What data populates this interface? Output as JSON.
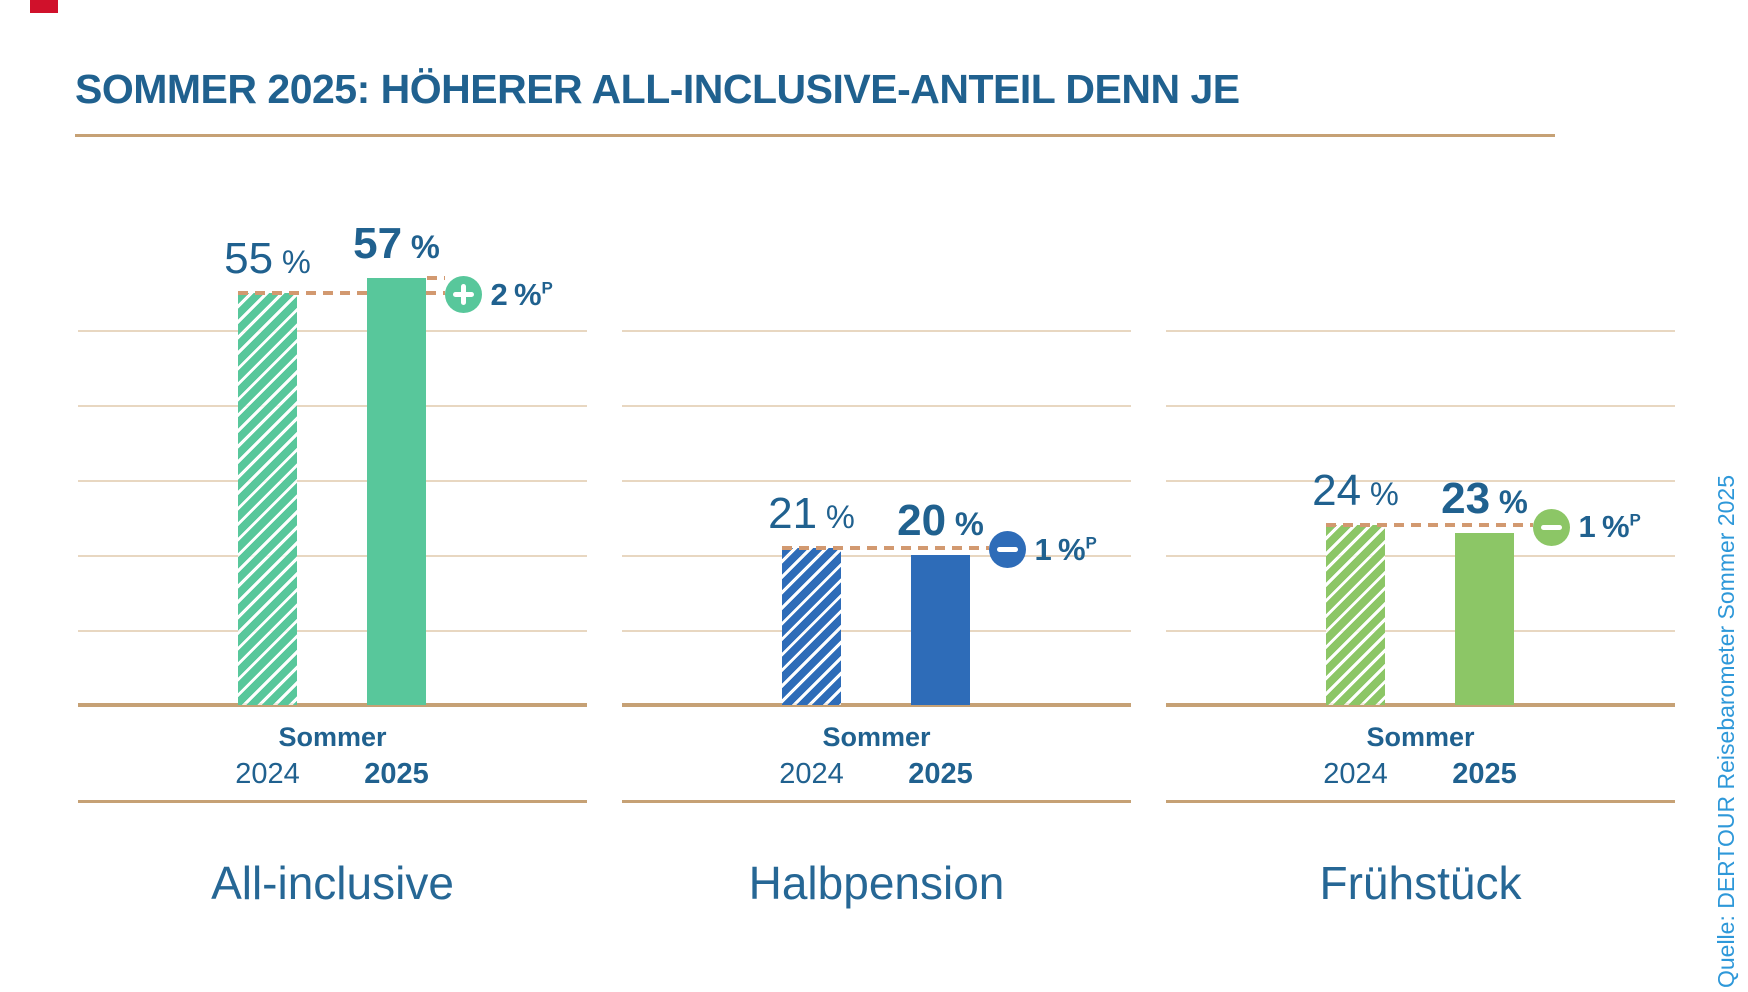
{
  "brand": {
    "accent_mark_color": "#D0112B"
  },
  "header": {
    "title": "SOMMER 2025: HÖHERER ALL-INCLUSIVE-ANTEIL DENN JE"
  },
  "source": "Quelle: DERTOUR Reisebarometer Sommer 2025",
  "axis": {
    "group_label": "Sommer",
    "years": [
      "2024",
      "2025"
    ]
  },
  "colors": {
    "text_blue": "#20618F",
    "category_blue": "#266795",
    "source_blue": "#2E98D9",
    "baseline_tan": "#C6A175",
    "gridline_tan": "#E8D7C1",
    "dash_tan": "#D29970"
  },
  "chart_data": {
    "type": "bar",
    "title": "SOMMER 2025: HÖHERER ALL-INCLUSIVE-ANTEIL DENN JE",
    "unit": "%",
    "ylim": [
      0,
      60
    ],
    "gridlines_pct": [
      10,
      20,
      30,
      40,
      50
    ],
    "grid": true,
    "legend_position": "none",
    "categories": [
      "All-inclusive",
      "Halbpension",
      "Frühstück"
    ],
    "series": [
      {
        "name": "Sommer 2024",
        "style": "hatched",
        "values": [
          55,
          21,
          24
        ]
      },
      {
        "name": "Sommer 2025",
        "style": "solid",
        "values": [
          57,
          20,
          23
        ]
      }
    ],
    "group_colors": [
      "#58C79B",
      "#2E6CB8",
      "#8CC666"
    ],
    "changes": [
      {
        "sign": "plus",
        "amount": "2",
        "unit": "%",
        "sup": "P"
      },
      {
        "sign": "minus",
        "amount": "1",
        "unit": "%",
        "sup": "P"
      },
      {
        "sign": "minus",
        "amount": "1",
        "unit": "%",
        "sup": "P"
      }
    ],
    "source": "Quelle: DERTOUR Reisebarometer Sommer 2025"
  }
}
